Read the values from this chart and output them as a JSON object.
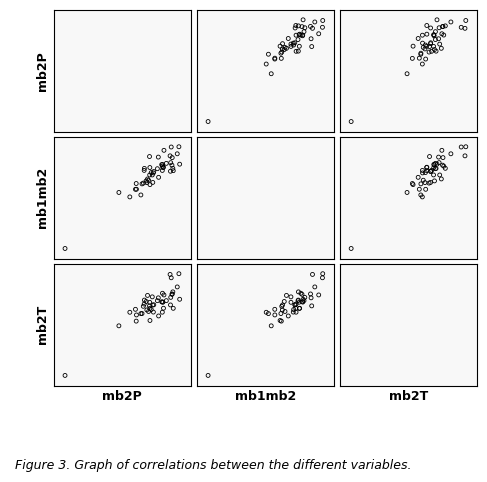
{
  "variables": [
    "mb2P",
    "mb1mb2",
    "mb2T"
  ],
  "figure_caption": "Figure 3. Graph of correlations between the different variables.",
  "seed": 7,
  "background_color": "#f5f5f5",
  "panel_bg": "#f8f8f8",
  "point_size": 8,
  "point_lw": 0.6,
  "n_main": 45,
  "n_outlier": 1,
  "main_mean": 100,
  "main_std": 5,
  "noise_std": 3,
  "outlier_val": 62,
  "xlabel_fontsize": 9,
  "ylabel_fontsize": 9,
  "caption_fontsize": 9
}
